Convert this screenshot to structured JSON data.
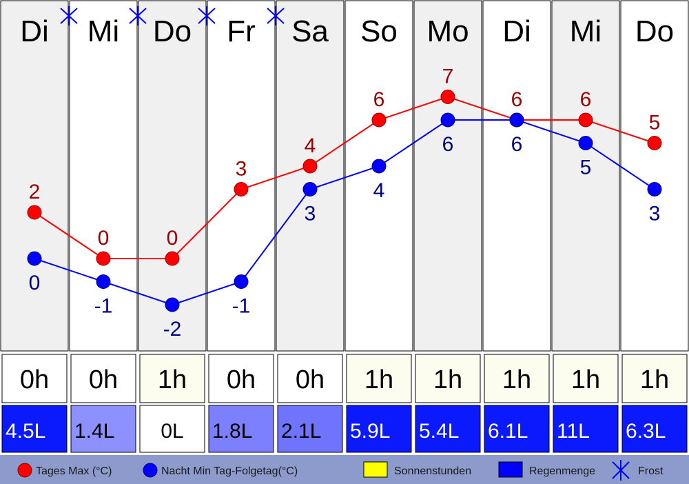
{
  "chart_data": {
    "type": "line",
    "days": [
      "Di",
      "Mi",
      "Do",
      "Fr",
      "Sa",
      "So",
      "Mo",
      "Di",
      "Mi",
      "Do"
    ],
    "frost": [
      false,
      true,
      true,
      true,
      true,
      false,
      false,
      false,
      false,
      false
    ],
    "series": [
      {
        "name": "Tages Max (°C)",
        "color": "#ff0000",
        "values": [
          2,
          0,
          0,
          3,
          4,
          6,
          7,
          6,
          6,
          5
        ],
        "labels": [
          "2",
          "0",
          "0",
          "3",
          "4",
          "6",
          "7",
          "6",
          "6",
          "5"
        ]
      },
      {
        "name": "Nacht Min Tag-Folgetag(°C)",
        "color": "#0000ff",
        "values": [
          0,
          -1,
          -2,
          -1,
          3,
          4,
          6,
          6,
          5,
          3
        ],
        "labels": [
          "0",
          "-1",
          "-2",
          "-1",
          "3",
          "4",
          "6",
          "6",
          "5",
          "3"
        ]
      }
    ],
    "sunshine_hours": [
      0,
      0,
      1,
      0,
      0,
      1,
      1,
      1,
      1,
      1
    ],
    "sunshine_labels": [
      "0h",
      "0h",
      "1h",
      "0h",
      "0h",
      "1h",
      "1h",
      "1h",
      "1h",
      "1h"
    ],
    "rain_liters": [
      4.5,
      1.4,
      0,
      1.8,
      2.1,
      5.9,
      5.4,
      6.1,
      11,
      6.3
    ],
    "rain_labels": [
      "4.5L",
      "1.4L",
      "0L",
      "1.8L",
      "2.1L",
      "5.9L",
      "5.4L",
      "6.1L",
      "11L",
      "6.3L"
    ],
    "legend": {
      "max": "Tages Max (°C)",
      "min": "Nacht Min Tag-Folgetag(°C)",
      "sun": "Sonnenstunden",
      "rain": "Regenmenge",
      "frost": "Frost"
    },
    "colors": {
      "max": "#ff0000",
      "min": "#0000ff",
      "sun": "#ffff00",
      "rain": "#0000ff",
      "frost": "#0000ff",
      "column_shaded": "#f0f0f0",
      "sun_cell": "#fdfdef",
      "legend_bar": "#8c9bcc"
    }
  }
}
